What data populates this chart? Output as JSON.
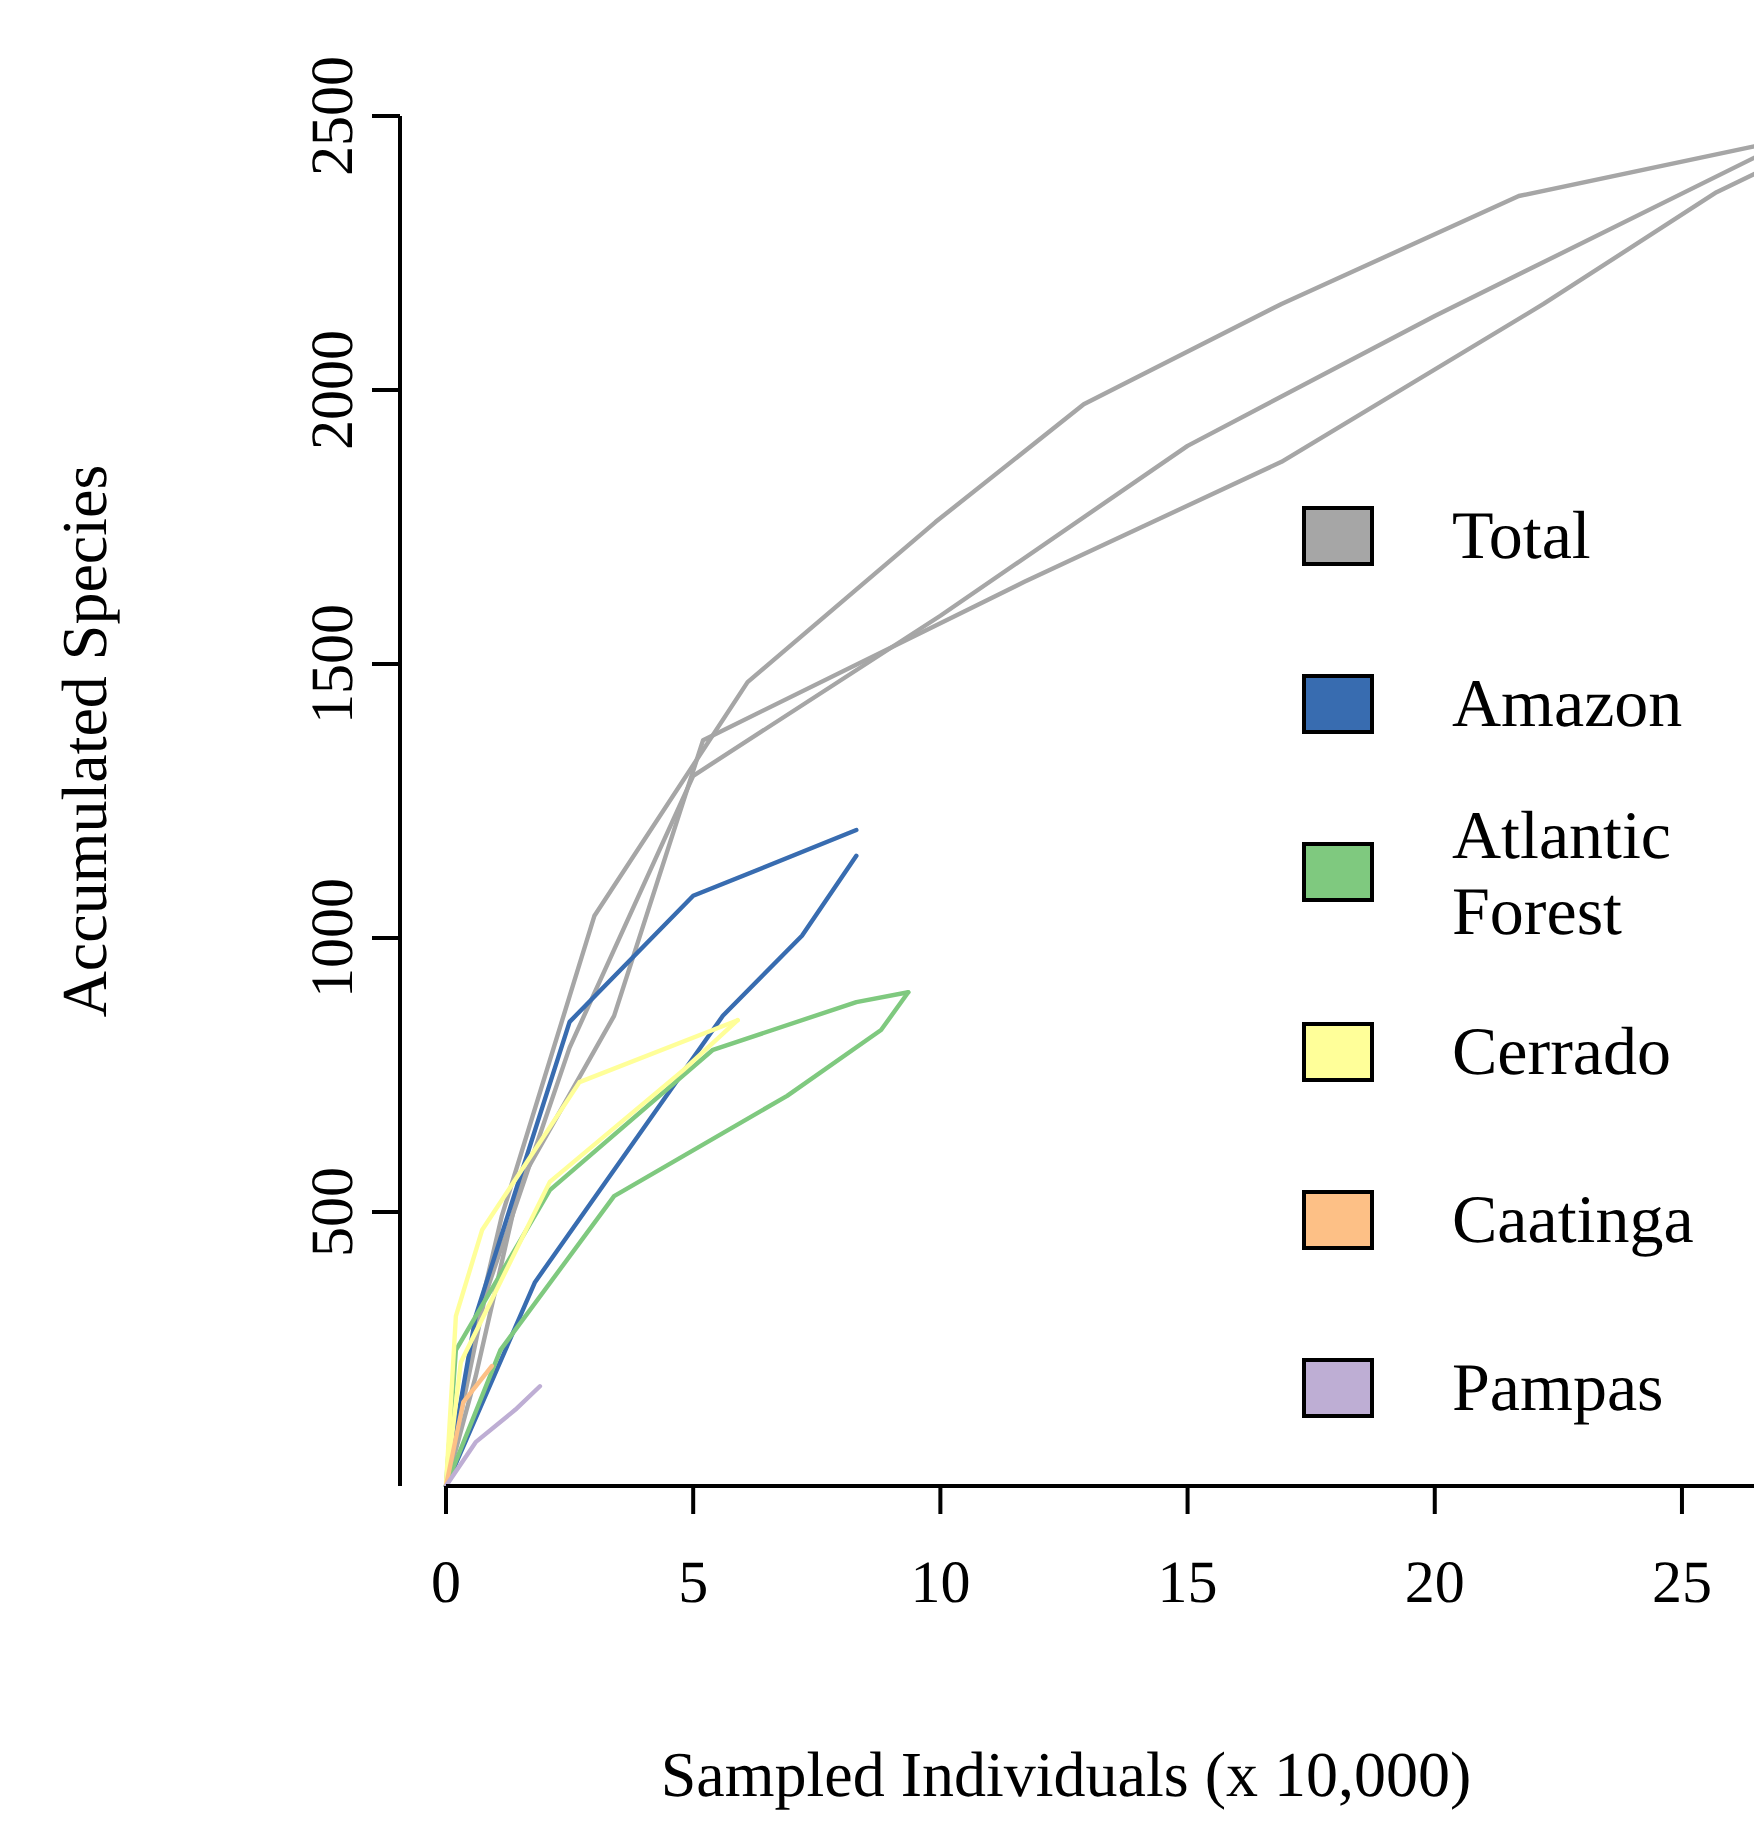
{
  "chart_data": {
    "type": "line",
    "xlabel": "Sampled Individuals (x 10,000)",
    "ylabel": "Accumulated Species",
    "xlim": [
      0,
      26.7
    ],
    "ylim": [
      0,
      2500
    ],
    "xticks": [
      0,
      5,
      10,
      15,
      20,
      25
    ],
    "yticks": [
      500,
      1000,
      1500,
      2000,
      2500
    ],
    "grid": false,
    "legend": "right",
    "marker": "none",
    "line_style": "solid",
    "series": [
      {
        "name": "Total",
        "color": "#a6a6a6",
        "x": [
          0,
          0.5,
          1.13,
          3.0,
          6.1,
          9.9,
          12.9,
          16.9,
          21.7,
          26.7
        ],
        "values": [
          0,
          250,
          493,
          1040,
          1467,
          1759,
          1974,
          2157,
          2354,
          2449
        ]
      },
      {
        "color": "#a6a6a6",
        "x": [
          0,
          0.6,
          1.5,
          3.4,
          5.2,
          11.7,
          16.9,
          22.2,
          25.7,
          26.6
        ],
        "values": [
          0,
          200,
          555,
          858,
          1361,
          1650,
          1869,
          2157,
          2361,
          2400
        ]
      },
      {
        "color": "#a6a6a6",
        "x": [
          0,
          0.8,
          2.5,
          5.0,
          10.0,
          15.0,
          20.0,
          26.6
        ],
        "values": [
          0,
          350,
          800,
          1296,
          1588,
          1898,
          2135,
          2430
        ]
      },
      {
        "name": "Amazon",
        "color": "#386cb0",
        "x": [
          0,
          0.6,
          2.5,
          5.0,
          8.3
        ],
        "values": [
          0,
          310,
          847,
          1077,
          1197
        ]
      },
      {
        "color": "#386cb0",
        "x": [
          0,
          1.8,
          5.6,
          7.2,
          8.3
        ],
        "values": [
          0,
          372,
          858,
          1004,
          1150
        ]
      },
      {
        "name": "Atlantic Forest",
        "color": "#7fc97f",
        "x": [
          0,
          0.2,
          2.1,
          5.4,
          8.3,
          9.35
        ],
        "values": [
          0,
          248,
          540,
          796,
          883,
          901
        ]
      },
      {
        "color": "#7fc97f",
        "x": [
          0,
          1.1,
          3.4,
          6.9,
          8.8,
          9.35
        ],
        "values": [
          0,
          248,
          529,
          712,
          832,
          901
        ]
      },
      {
        "name": "Cerrado",
        "color": "#ffff99",
        "x": [
          0,
          0.2,
          0.73,
          2.7,
          5.9
        ],
        "values": [
          0,
          310,
          467,
          737,
          850
        ]
      },
      {
        "color": "#ffff99",
        "x": [
          0,
          0.3,
          2.1,
          4.8,
          5.9
        ],
        "values": [
          0,
          226,
          555,
          759,
          850
        ]
      },
      {
        "name": "Caatinga",
        "color": "#fdc086",
        "x": [
          0,
          0.35,
          0.93
        ],
        "values": [
          0,
          153,
          219
        ]
      },
      {
        "name": "Pampas",
        "color": "#beaed4",
        "x": [
          0,
          0.6,
          1.4,
          1.9
        ],
        "values": [
          0,
          80,
          139,
          182
        ]
      }
    ]
  }
}
